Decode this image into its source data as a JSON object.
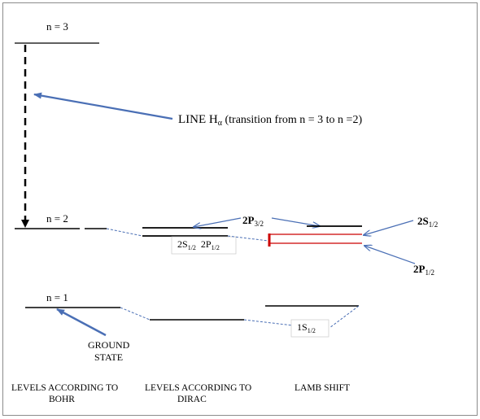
{
  "levels": {
    "bohr_n3": "n = 3",
    "bohr_n2": "n = 2",
    "bohr_n1": "n = 1"
  },
  "transition_label": {
    "prefix": "LINE H",
    "sub": "α",
    "suffix": " (transition from n = 3 to n =2)"
  },
  "dirac": {
    "p32_main": "2P",
    "p32_sub": "3/2",
    "s12_main": "2S",
    "s12_sub": "1/2",
    "p12_main": "2P",
    "p12_sub": "1/2"
  },
  "lamb": {
    "s12_main": "2S",
    "s12_sub": "1/2",
    "p12_main": "2P",
    "p12_sub": "1/2",
    "ground_main": "1S",
    "ground_sub": "1/2"
  },
  "ground_state": {
    "line1": "GROUND",
    "line2": "STATE"
  },
  "columns": {
    "bohr_line1": "LEVELS ACCORDING TO",
    "bohr_line2": "BOHR",
    "dirac_line1": "LEVELS ACCORDING TO",
    "dirac_line2": "DIRAC",
    "lamb": "LAMB SHIFT"
  },
  "colors": {
    "arrow": "#4a6fb5",
    "lamb_shift": "#cc0000",
    "connector": "#4a6fb5"
  }
}
